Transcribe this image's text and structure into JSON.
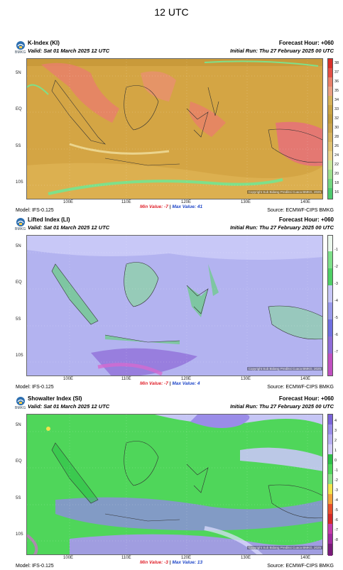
{
  "page_title": "12 UTC",
  "panels": [
    {
      "title": "K-Index (KI)",
      "valid": "Valid: Sat 01 March 2025 12 UTC",
      "forecast_hour": "Forecast Hour: +060",
      "initial_run": "Initial Run: Thu 27 February 2025 00 UTC",
      "logo_text": "BMKG",
      "model": "Model: IFS-0.125",
      "source": "Source: ECMWF-CIPS BMKG",
      "min_label": "Min Value: -7",
      "separator": "|",
      "max_label": "Max Value: 41",
      "copyright": "Copyright Sub Bidang Prediksi Cuaca BMKG, 2025",
      "lat_labels": [
        "5N",
        "EQ",
        "5S",
        "10S"
      ],
      "lon_labels": [
        "100E",
        "110E",
        "120E",
        "130E",
        "140E"
      ],
      "colorbar_labels": [
        "38",
        "37",
        "36",
        "35",
        "34",
        "33",
        "32",
        "30",
        "28",
        "26",
        "24",
        "22",
        "20",
        "18",
        "16"
      ],
      "colors": {
        "background": "#d4a544",
        "high": "#e8806a",
        "low": "#7ee08a",
        "sea_low": "#f0e0a0"
      }
    },
    {
      "title": "Lifted Index (LI)",
      "valid": "Valid: Sat 01 March 2025 12 UTC",
      "forecast_hour": "Forecast Hour: +060",
      "initial_run": "Initial Run: Thu 27 February 2025 00 UTC",
      "logo_text": "BMKG",
      "model": "Model: IFS-0.125",
      "source": "Source: ECMWF-CIPS BMKG",
      "min_label": "Min Value: -7",
      "separator": "|",
      "max_label": "Max Value: 4",
      "copyright": "Copyright Sub Bidang Prediksi Cuaca BMKG, 2025",
      "lat_labels": [
        "5N",
        "EQ",
        "5S",
        "10S"
      ],
      "lon_labels": [
        "100E",
        "110E",
        "120E",
        "130E",
        "140E"
      ],
      "colorbar_labels": [
        "-1",
        "-2",
        "-3",
        "-4",
        "-5",
        "-6",
        "-7"
      ],
      "colors": {
        "background": "#b3b3f0",
        "high": "#5ad26e",
        "low": "#8f6cd8",
        "sea_low": "#c8c8f7"
      }
    },
    {
      "title": "Showalter Index (SI)",
      "valid": "Valid: Sat 01 March 2025 12 UTC",
      "forecast_hour": "Forecast Hour: +060",
      "initial_run": "Initial Run: Thu 27 February 2025 00 UTC",
      "logo_text": "BMKG",
      "model": "Model: IFS-0.125",
      "source": "Source: ECMWF-CIPS BMKG",
      "min_label": "Min Value: -3",
      "separator": "|",
      "max_label": "Max Value: 13",
      "copyright": "Copyright Sub Bidang Prediksi Cuaca BMKG, 2025",
      "lat_labels": [
        "5N",
        "EQ",
        "5S",
        "10S"
      ],
      "lon_labels": [
        "100E",
        "110E",
        "120E",
        "130E",
        "140E"
      ],
      "colorbar_labels": [
        "4",
        "3",
        "2",
        "1",
        "0",
        "-1",
        "-2",
        "-3",
        "-4",
        "-5",
        "-6",
        "-7",
        "-8"
      ],
      "colors": {
        "background": "#4fd65a",
        "high": "#9a8ce8",
        "low": "#2fbf48",
        "sea_low": "#c6c6f5"
      }
    }
  ]
}
